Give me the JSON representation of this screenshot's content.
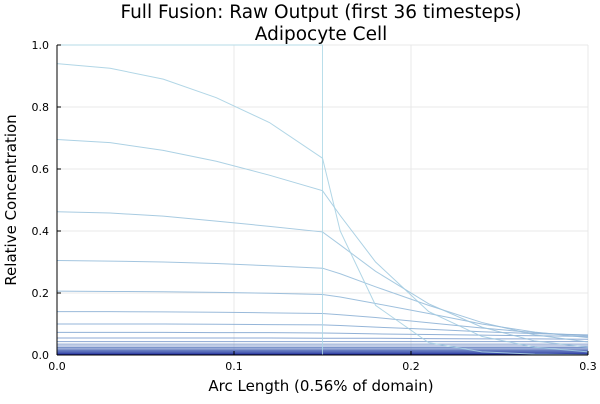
{
  "chart_data": {
    "type": "line",
    "title": "Full Fusion: Raw Output (first 36 timesteps)",
    "subtitle": "Adipocyte Cell",
    "xlabel": "Arc Length (0.56% of domain)",
    "ylabel": "Relative Concentration",
    "xlim": [
      0.0,
      0.3
    ],
    "ylim": [
      0.0,
      1.0
    ],
    "xticks": [
      0.0,
      0.1,
      0.2,
      0.3
    ],
    "xtick_labels": [
      "0.0",
      "0.1",
      "0.2",
      "0.3"
    ],
    "yticks": [
      0.0,
      0.2,
      0.4,
      0.6,
      0.8,
      1.0
    ],
    "ytick_labels": [
      "0.0",
      "0.2",
      "0.4",
      "0.6",
      "0.8",
      "1.0"
    ],
    "grid": true,
    "legend": "none",
    "interface_x": 0.15,
    "color_start": "#add8e6",
    "color_end": "#00008b",
    "x": [
      0.0,
      0.03,
      0.06,
      0.09,
      0.12,
      0.15,
      0.16,
      0.18,
      0.21,
      0.24,
      0.27,
      0.3
    ],
    "series": [
      {
        "values": [
          1.0,
          1.0,
          1.0,
          1.0,
          1.0,
          1.0,
          0.0,
          0.0,
          0.0,
          0.0,
          0.0,
          0.0
        ]
      },
      {
        "values": [
          0.94,
          0.925,
          0.89,
          0.83,
          0.75,
          0.635,
          0.4,
          0.16,
          0.04,
          0.01,
          0.003,
          0.001
        ]
      },
      {
        "values": [
          0.695,
          0.685,
          0.66,
          0.625,
          0.58,
          0.53,
          0.45,
          0.3,
          0.14,
          0.06,
          0.025,
          0.01
        ]
      },
      {
        "values": [
          0.462,
          0.458,
          0.448,
          0.432,
          0.415,
          0.397,
          0.355,
          0.27,
          0.165,
          0.09,
          0.045,
          0.025
        ]
      },
      {
        "values": [
          0.305,
          0.303,
          0.3,
          0.295,
          0.288,
          0.28,
          0.262,
          0.22,
          0.16,
          0.105,
          0.065,
          0.042
        ]
      },
      {
        "values": [
          0.206,
          0.205,
          0.204,
          0.202,
          0.199,
          0.195,
          0.187,
          0.166,
          0.134,
          0.1,
          0.074,
          0.056
        ]
      },
      {
        "values": [
          0.14,
          0.14,
          0.139,
          0.138,
          0.136,
          0.134,
          0.13,
          0.121,
          0.104,
          0.087,
          0.072,
          0.062
        ]
      },
      {
        "values": [
          0.1,
          0.1,
          0.1,
          0.099,
          0.098,
          0.097,
          0.095,
          0.09,
          0.083,
          0.075,
          0.069,
          0.065
        ]
      },
      {
        "values": [
          0.073,
          0.073,
          0.073,
          0.072,
          0.072,
          0.071,
          0.07,
          0.068,
          0.066,
          0.064,
          0.062,
          0.06
        ]
      },
      {
        "values": [
          0.055,
          0.055,
          0.055,
          0.055,
          0.055,
          0.054,
          0.054,
          0.054,
          0.053,
          0.052,
          0.052,
          0.051
        ]
      },
      {
        "values": [
          0.043,
          0.043,
          0.043,
          0.043,
          0.043,
          0.043,
          0.043,
          0.043,
          0.043,
          0.043,
          0.043,
          0.043
        ]
      },
      {
        "values": [
          0.035,
          0.035,
          0.035,
          0.035,
          0.035,
          0.035,
          0.035,
          0.035,
          0.035,
          0.035,
          0.035,
          0.035
        ]
      },
      {
        "values": [
          0.029,
          0.029,
          0.029,
          0.029,
          0.029,
          0.029,
          0.029,
          0.029,
          0.029,
          0.029,
          0.029,
          0.029
        ]
      },
      {
        "values": [
          0.024,
          0.024,
          0.024,
          0.024,
          0.024,
          0.024,
          0.024,
          0.024,
          0.024,
          0.024,
          0.024,
          0.024
        ]
      },
      {
        "values": [
          0.02,
          0.02,
          0.02,
          0.02,
          0.02,
          0.02,
          0.02,
          0.02,
          0.02,
          0.02,
          0.02,
          0.02
        ]
      },
      {
        "values": [
          0.017,
          0.017,
          0.017,
          0.017,
          0.017,
          0.017,
          0.017,
          0.017,
          0.017,
          0.017,
          0.017,
          0.017
        ]
      },
      {
        "values": [
          0.0145,
          0.0145,
          0.0145,
          0.0145,
          0.0145,
          0.0145,
          0.0145,
          0.0145,
          0.0145,
          0.0145,
          0.0145,
          0.0145
        ]
      },
      {
        "values": [
          0.0125,
          0.0125,
          0.0125,
          0.0125,
          0.0125,
          0.0125,
          0.0125,
          0.0125,
          0.0125,
          0.0125,
          0.0125,
          0.0125
        ]
      },
      {
        "values": [
          0.011,
          0.011,
          0.011,
          0.011,
          0.011,
          0.011,
          0.011,
          0.011,
          0.011,
          0.011,
          0.011,
          0.011
        ]
      },
      {
        "values": [
          0.0097,
          0.0097,
          0.0097,
          0.0097,
          0.0097,
          0.0097,
          0.0097,
          0.0097,
          0.0097,
          0.0097,
          0.0097,
          0.0097
        ]
      },
      {
        "values": [
          0.0086,
          0.0086,
          0.0086,
          0.0086,
          0.0086,
          0.0086,
          0.0086,
          0.0086,
          0.0086,
          0.0086,
          0.0086,
          0.0086
        ]
      },
      {
        "values": [
          0.0077,
          0.0077,
          0.0077,
          0.0077,
          0.0077,
          0.0077,
          0.0077,
          0.0077,
          0.0077,
          0.0077,
          0.0077,
          0.0077
        ]
      },
      {
        "values": [
          0.0069,
          0.0069,
          0.0069,
          0.0069,
          0.0069,
          0.0069,
          0.0069,
          0.0069,
          0.0069,
          0.0069,
          0.0069,
          0.0069
        ]
      },
      {
        "values": [
          0.0062,
          0.0062,
          0.0062,
          0.0062,
          0.0062,
          0.0062,
          0.0062,
          0.0062,
          0.0062,
          0.0062,
          0.0062,
          0.0062
        ]
      },
      {
        "values": [
          0.0056,
          0.0056,
          0.0056,
          0.0056,
          0.0056,
          0.0056,
          0.0056,
          0.0056,
          0.0056,
          0.0056,
          0.0056,
          0.0056
        ]
      },
      {
        "values": [
          0.0051,
          0.0051,
          0.0051,
          0.0051,
          0.0051,
          0.0051,
          0.0051,
          0.0051,
          0.0051,
          0.0051,
          0.0051,
          0.0051
        ]
      },
      {
        "values": [
          0.0046,
          0.0046,
          0.0046,
          0.0046,
          0.0046,
          0.0046,
          0.0046,
          0.0046,
          0.0046,
          0.0046,
          0.0046,
          0.0046
        ]
      },
      {
        "values": [
          0.0042,
          0.0042,
          0.0042,
          0.0042,
          0.0042,
          0.0042,
          0.0042,
          0.0042,
          0.0042,
          0.0042,
          0.0042,
          0.0042
        ]
      },
      {
        "values": [
          0.0038,
          0.0038,
          0.0038,
          0.0038,
          0.0038,
          0.0038,
          0.0038,
          0.0038,
          0.0038,
          0.0038,
          0.0038,
          0.0038
        ]
      },
      {
        "values": [
          0.0035,
          0.0035,
          0.0035,
          0.0035,
          0.0035,
          0.0035,
          0.0035,
          0.0035,
          0.0035,
          0.0035,
          0.0035,
          0.0035
        ]
      },
      {
        "values": [
          0.0032,
          0.0032,
          0.0032,
          0.0032,
          0.0032,
          0.0032,
          0.0032,
          0.0032,
          0.0032,
          0.0032,
          0.0032,
          0.0032
        ]
      },
      {
        "values": [
          0.0029,
          0.0029,
          0.0029,
          0.0029,
          0.0029,
          0.0029,
          0.0029,
          0.0029,
          0.0029,
          0.0029,
          0.0029,
          0.0029
        ]
      },
      {
        "values": [
          0.0026,
          0.0026,
          0.0026,
          0.0026,
          0.0026,
          0.0026,
          0.0026,
          0.0026,
          0.0026,
          0.0026,
          0.0026,
          0.0026
        ]
      },
      {
        "values": [
          0.0024,
          0.0024,
          0.0024,
          0.0024,
          0.0024,
          0.0024,
          0.0024,
          0.0024,
          0.0024,
          0.0024,
          0.0024,
          0.0024
        ]
      },
      {
        "values": [
          0.0022,
          0.0022,
          0.0022,
          0.0022,
          0.0022,
          0.0022,
          0.0022,
          0.0022,
          0.0022,
          0.0022,
          0.0022,
          0.0022
        ]
      },
      {
        "values": [
          0.002,
          0.002,
          0.002,
          0.002,
          0.002,
          0.002,
          0.002,
          0.002,
          0.002,
          0.002,
          0.002,
          0.002
        ]
      }
    ]
  }
}
